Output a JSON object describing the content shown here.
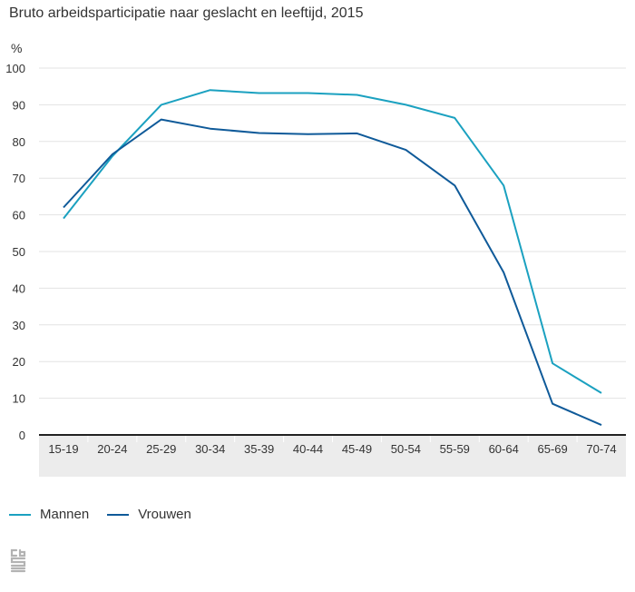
{
  "chart_data": {
    "type": "line",
    "title": "Bruto arbeidsparticipatie naar geslacht en leeftijd, 2015",
    "ylabel": "%",
    "xlabel": "",
    "ylim": [
      0,
      100
    ],
    "yticks": [
      0,
      10,
      20,
      30,
      40,
      50,
      60,
      70,
      80,
      90,
      100
    ],
    "grid": true,
    "legend_position": "bottom-left",
    "categories": [
      "15-19",
      "20-24",
      "25-29",
      "30-34",
      "35-39",
      "40-44",
      "45-49",
      "50-54",
      "55-59",
      "60-64",
      "65-69",
      "70-74"
    ],
    "series": [
      {
        "name": "Mannen",
        "color": "#1ba1c0",
        "values": [
          59,
          76,
          90,
          94,
          93.2,
          93.2,
          92.7,
          90,
          86.4,
          68,
          19.5,
          11.4
        ]
      },
      {
        "name": "Vrouwen",
        "color": "#0f5a99",
        "values": [
          62,
          76.5,
          86,
          83.5,
          82.3,
          82,
          82.2,
          77.7,
          68,
          44.3,
          8.5,
          2.7
        ]
      }
    ]
  },
  "logo": {
    "icon": "cbs-logo-icon",
    "color": "#b0b0b0"
  }
}
